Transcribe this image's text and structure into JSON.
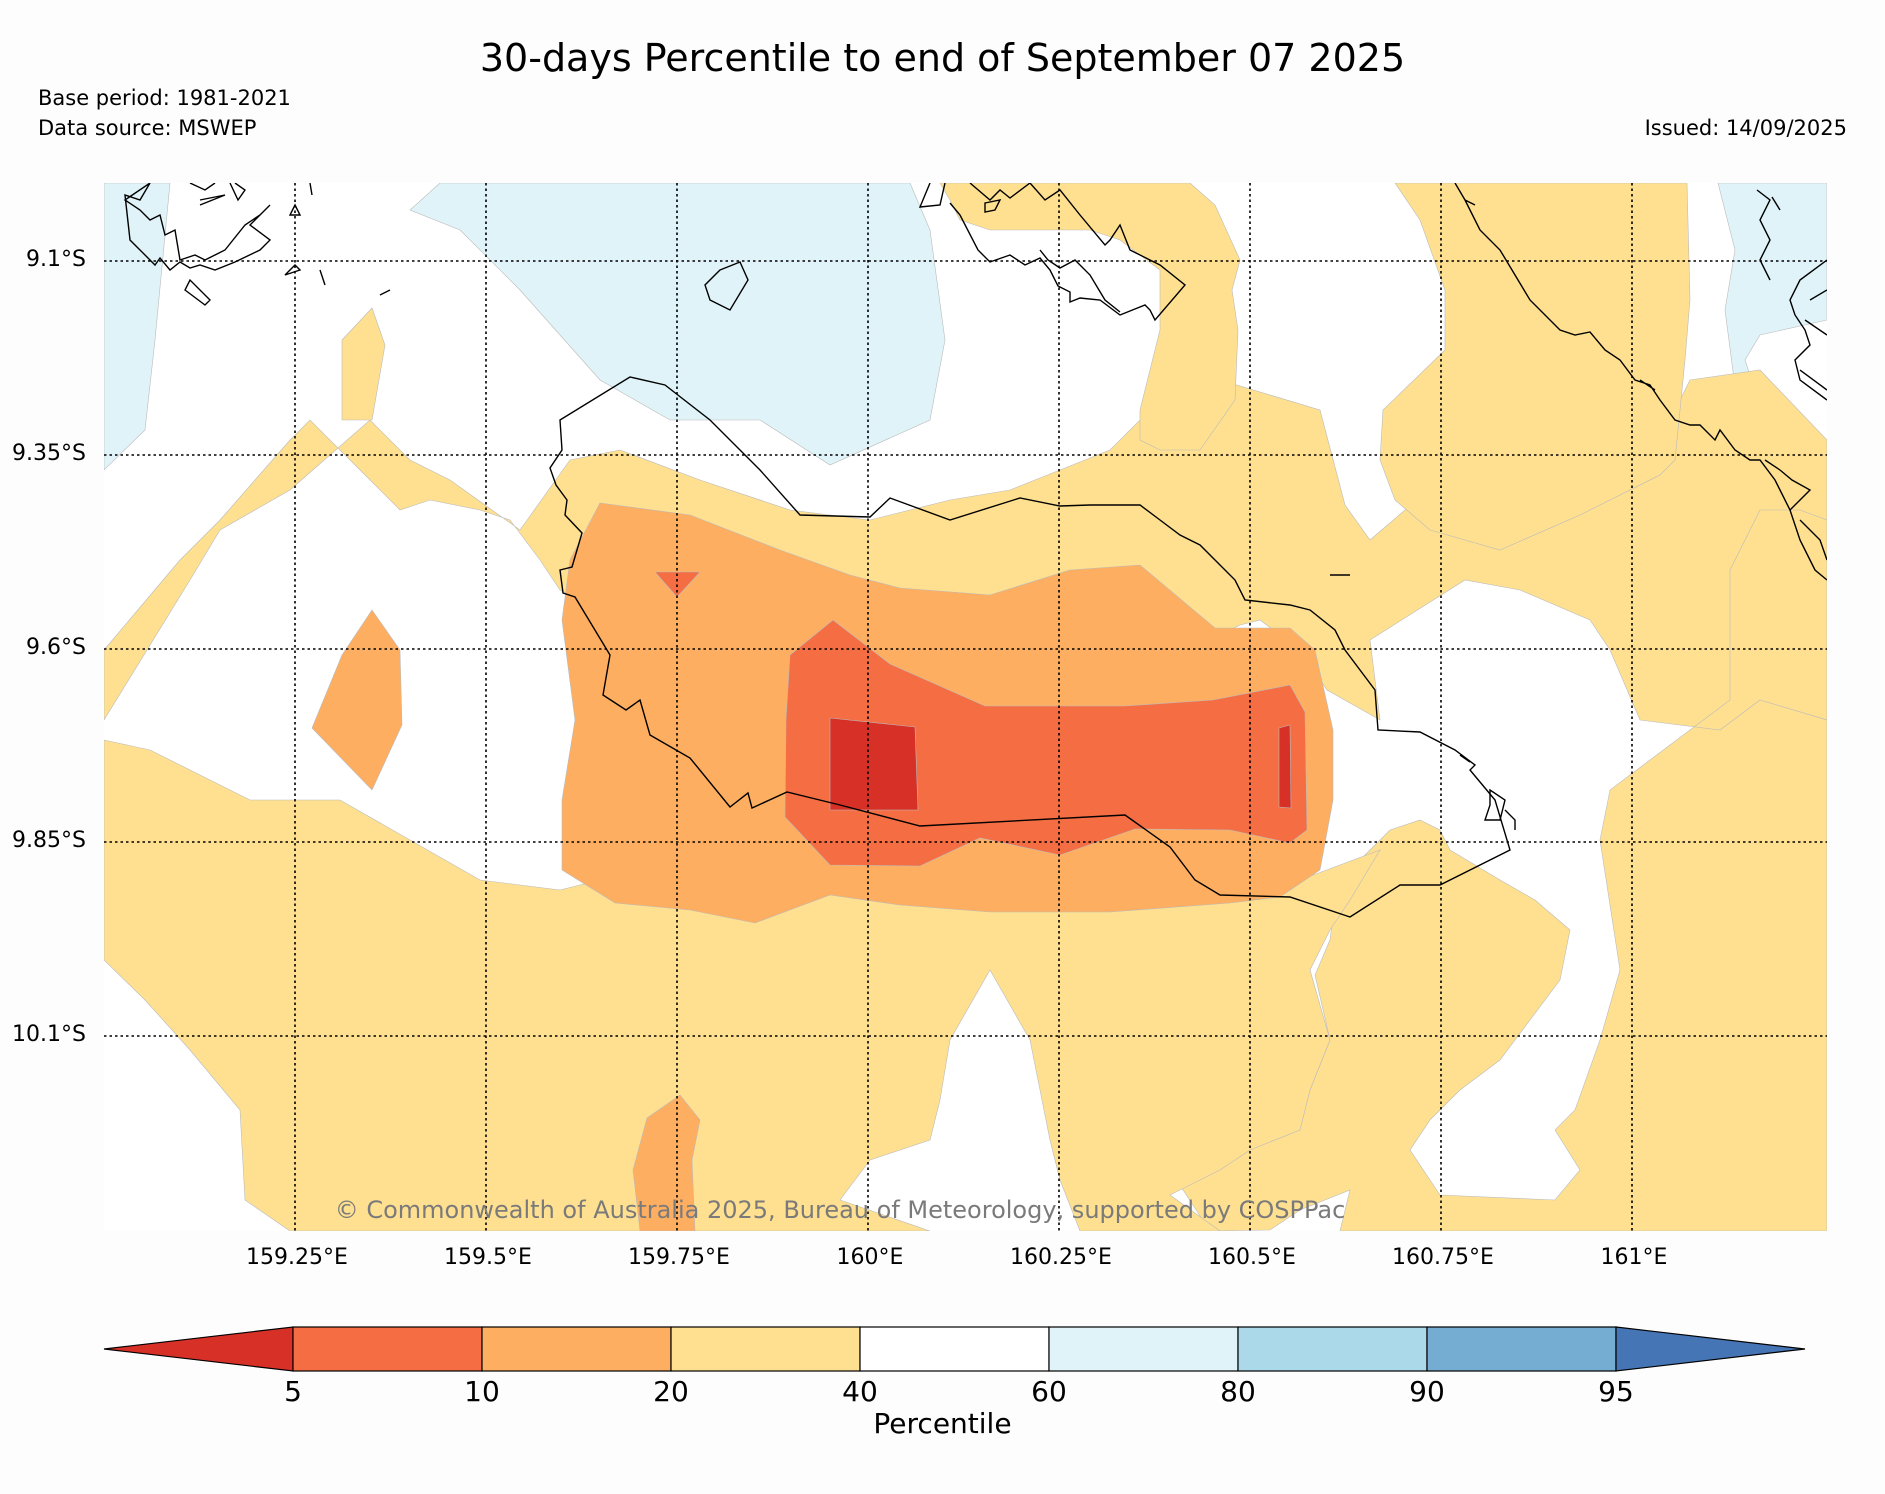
{
  "header": {
    "title": "30-days Percentile to end of September 07 2025",
    "base_period": "Base period: 1981-2021",
    "data_source": "Data source: MSWEP",
    "issued": "Issued: 14/09/2025"
  },
  "map": {
    "latitude_labels": [
      "9.1°S",
      "9.35°S",
      "9.6°S",
      "9.85°S",
      "10.1°S"
    ],
    "longitude_labels": [
      "159.25°E",
      "159.5°E",
      "159.75°E",
      "160°E",
      "160.25°E",
      "160.5°E",
      "160.75°E",
      "161°E"
    ],
    "copyright": "© Commonwealth of Australia 2025, Bureau of Meteorology, supported by COSPPac"
  },
  "colorbar": {
    "title": "Percentile",
    "tick_labels": [
      "5",
      "10",
      "20",
      "40",
      "60",
      "80",
      "90",
      "95"
    ],
    "colors": {
      "lt5": "#d73027",
      "5-10": "#f46d43",
      "10-20": "#fdae61",
      "20-40": "#fee090",
      "40-60": "#ffffff",
      "60-80": "#e0f3f8",
      "80-90": "#abd9e9",
      "90-95": "#74add1",
      "gt95": "#4575b4"
    }
  }
}
